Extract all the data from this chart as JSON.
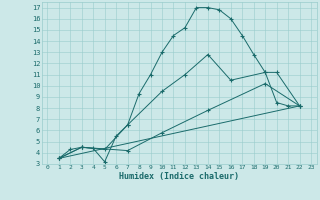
{
  "xlabel": "Humidex (Indice chaleur)",
  "bg_color": "#cce8e8",
  "grid_color": "#99cccc",
  "line_color": "#1a6b6b",
  "xlim": [
    -0.5,
    23.5
  ],
  "ylim": [
    3,
    17.5
  ],
  "xticks": [
    0,
    1,
    2,
    3,
    4,
    5,
    6,
    7,
    8,
    9,
    10,
    11,
    12,
    13,
    14,
    15,
    16,
    17,
    18,
    19,
    20,
    21,
    22,
    23
  ],
  "yticks": [
    3,
    4,
    5,
    6,
    7,
    8,
    9,
    10,
    11,
    12,
    13,
    14,
    15,
    16,
    17
  ],
  "curves": [
    {
      "x": [
        1,
        2,
        3,
        4,
        5,
        6,
        7,
        8,
        9,
        10,
        11,
        12,
        13,
        14,
        15,
        16,
        17,
        18,
        19,
        20,
        21,
        22
      ],
      "y": [
        3.5,
        4.3,
        4.5,
        4.4,
        3.2,
        5.5,
        6.5,
        9.3,
        11.0,
        13.0,
        14.5,
        15.2,
        17.0,
        17.0,
        16.8,
        16.0,
        14.5,
        12.8,
        11.2,
        8.5,
        8.2,
        8.2
      ],
      "marker": "+"
    },
    {
      "x": [
        1,
        3,
        5,
        7,
        10,
        12,
        14,
        16,
        19,
        20,
        22
      ],
      "y": [
        3.5,
        4.5,
        4.3,
        6.5,
        9.5,
        11.0,
        12.8,
        10.5,
        11.2,
        11.2,
        8.2
      ],
      "marker": "+"
    },
    {
      "x": [
        1,
        3,
        7,
        10,
        14,
        19,
        22
      ],
      "y": [
        3.5,
        4.5,
        4.2,
        5.8,
        7.8,
        10.2,
        8.2
      ],
      "marker": "+"
    },
    {
      "x": [
        1,
        22
      ],
      "y": [
        3.5,
        8.2
      ],
      "marker": null
    }
  ]
}
